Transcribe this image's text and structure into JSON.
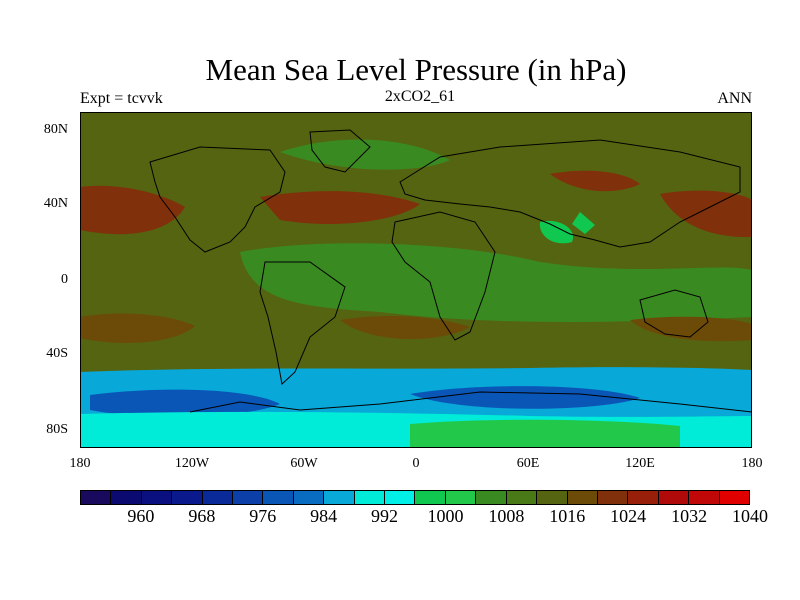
{
  "title": "Mean Sea Level Pressure (in hPa)",
  "subtitle_left": "Expt = tcvvk",
  "subtitle_center": "2xCO2_61",
  "subtitle_right": "ANN",
  "lat_labels": [
    "80N",
    "40N",
    "0",
    "40S",
    "80S"
  ],
  "lon_labels": [
    "180",
    "120W",
    "60W",
    "0",
    "60E",
    "120E",
    "180"
  ],
  "colorbar": {
    "colors": [
      "#1a0a5e",
      "#0b0a70",
      "#0a1080",
      "#0a1a8c",
      "#0a2a9a",
      "#0c40a8",
      "#0a56b6",
      "#0a6cc0",
      "#08a8d8",
      "#00ecd8",
      "#00f0e8",
      "#10c850",
      "#22c84a",
      "#3a8a22",
      "#4a7a18",
      "#556410",
      "#6c4a08",
      "#80300a",
      "#98200a",
      "#b00a0a",
      "#c00808",
      "#e00000"
    ],
    "labels": [
      "960",
      "968",
      "976",
      "984",
      "992",
      "1000",
      "1008",
      "1016",
      "1024",
      "1032",
      "1040"
    ]
  },
  "regions": [
    {
      "name": "base",
      "color": "#556410"
    },
    {
      "name": "north-pacific-high",
      "color": "#80300a"
    },
    {
      "name": "north-atlantic-high",
      "color": "#80300a"
    },
    {
      "name": "siberian-high",
      "color": "#80300a"
    },
    {
      "name": "tropical-low",
      "color": "#3a8a22"
    },
    {
      "name": "arctic-low",
      "color": "#3a8a22"
    },
    {
      "name": "tibet-low",
      "color": "#10c850"
    },
    {
      "name": "subtropical-south-high",
      "color": "#6c4a08"
    },
    {
      "name": "southern-ocean-band",
      "color": "#08a8d8"
    },
    {
      "name": "circumpolar-trough",
      "color": "#0a56b6"
    },
    {
      "name": "antarctic-coast",
      "color": "#00ecd8"
    },
    {
      "name": "antarctic-interior",
      "color": "#22c84a"
    }
  ]
}
